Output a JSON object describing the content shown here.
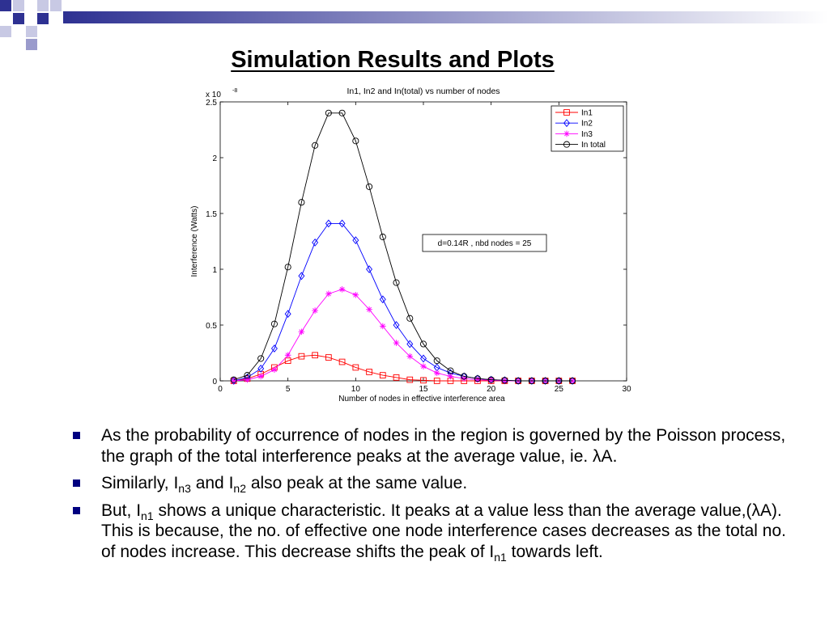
{
  "slide": {
    "title": "Simulation Results and Plots",
    "accent_color": "#2E3192"
  },
  "chart_data": {
    "type": "line",
    "title": "In1, In2 and In(total) vs number of nodes",
    "xlabel": "Number of nodes in effective interference area",
    "ylabel": "Interference (Watts)",
    "y_exponent_label": "x 10",
    "y_exponent": "-8",
    "xlim": [
      0,
      30
    ],
    "ylim": [
      0,
      2.5
    ],
    "xticks": [
      "0",
      "5",
      "10",
      "15",
      "20",
      "25",
      "30"
    ],
    "yticks": [
      "0",
      "0.5",
      "1",
      "1.5",
      "2",
      "2.5"
    ],
    "legend_position": "top-right",
    "annotation": "d=0.14R , nbd nodes = 25",
    "x": [
      1,
      2,
      3,
      4,
      5,
      6,
      7,
      8,
      9,
      10,
      11,
      12,
      13,
      14,
      15,
      16,
      17,
      18,
      19,
      20,
      21,
      22,
      23,
      24,
      25,
      26
    ],
    "series": [
      {
        "name": "In1",
        "color": "#ff0000",
        "marker": "square",
        "values": [
          0.0,
          0.02,
          0.06,
          0.12,
          0.18,
          0.22,
          0.23,
          0.21,
          0.17,
          0.12,
          0.08,
          0.05,
          0.03,
          0.01,
          0.005,
          0,
          0,
          0,
          0,
          0,
          0,
          0,
          0,
          0,
          0,
          0
        ]
      },
      {
        "name": "In2",
        "color": "#0000ff",
        "marker": "diamond",
        "values": [
          0.0,
          0.03,
          0.11,
          0.29,
          0.6,
          0.94,
          1.24,
          1.41,
          1.41,
          1.26,
          1.0,
          0.73,
          0.5,
          0.33,
          0.2,
          0.12,
          0.07,
          0.04,
          0.02,
          0.01,
          0.005,
          0,
          0,
          0,
          0,
          0
        ]
      },
      {
        "name": "In3",
        "color": "#ff00ff",
        "marker": "star",
        "values": [
          0.0,
          0.01,
          0.04,
          0.1,
          0.23,
          0.44,
          0.63,
          0.78,
          0.82,
          0.77,
          0.64,
          0.49,
          0.34,
          0.22,
          0.13,
          0.07,
          0.04,
          0.02,
          0.01,
          0.005,
          0,
          0,
          0,
          0,
          0,
          0
        ]
      },
      {
        "name": "In total",
        "color": "#000000",
        "marker": "circle",
        "values": [
          0.01,
          0.05,
          0.2,
          0.51,
          1.02,
          1.6,
          2.11,
          2.4,
          2.4,
          2.15,
          1.74,
          1.29,
          0.88,
          0.56,
          0.33,
          0.18,
          0.09,
          0.04,
          0.02,
          0.01,
          0.005,
          0,
          0,
          0,
          0,
          0
        ]
      }
    ]
  },
  "bullets": [
    {
      "text": "As the probability of occurrence of nodes in the region is governed by the Poisson process, the graph of the total interference peaks at the average value, ie. λA."
    },
    {
      "p1": "Similarly, I",
      "s1": "n3",
      "p2": " and I",
      "s2": "n2",
      "p3": " also peak at the same value."
    },
    {
      "p1": "But, I",
      "s1": "n1",
      "p2": " shows a unique characteristic. It peaks at a value less than the average value,(λA). This is because, the no. of effective one node interference cases decreases as the total no. of nodes increase. This decrease shifts the peak of I",
      "s2": "n1",
      "p3": " towards left."
    }
  ]
}
